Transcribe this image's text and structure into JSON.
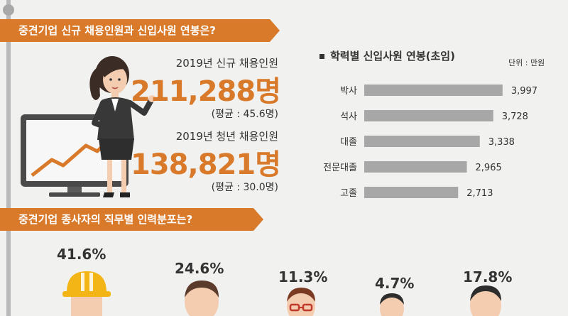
{
  "section1": {
    "title": "중견기업 신규 채용인원과 신입사원 연봉은?"
  },
  "stats": {
    "new_hires": {
      "label": "2019년 신규 채용인원",
      "value": "211,288명",
      "avg": "(평균 : 45.6명)"
    },
    "youth_hires": {
      "label": "2019년 청년 채용인원",
      "value": "138,821명",
      "avg": "(평균 : 30.0명)"
    }
  },
  "chart_data": {
    "type": "bar",
    "orientation": "horizontal",
    "title": "학력별 신입사원 연봉(초임)",
    "unit": "단위 : 만원",
    "categories": [
      "박사",
      "석사",
      "대졸",
      "전문대졸",
      "고졸"
    ],
    "value_labels": [
      "3,997",
      "3,728",
      "3,338",
      "2,965",
      "2,713"
    ],
    "values": [
      3997,
      3728,
      3338,
      2965,
      2713
    ],
    "color": "#a7a7a7"
  },
  "section2": {
    "title": "중견기업 종사자의 직무별 인력분포는?",
    "percentages": [
      "41.6%",
      "24.6%",
      "11.3%",
      "4.7%",
      "17.8%"
    ]
  },
  "colors": {
    "accent": "#d9792a",
    "background": "#f1f1ef",
    "bar": "#a7a7a7"
  }
}
